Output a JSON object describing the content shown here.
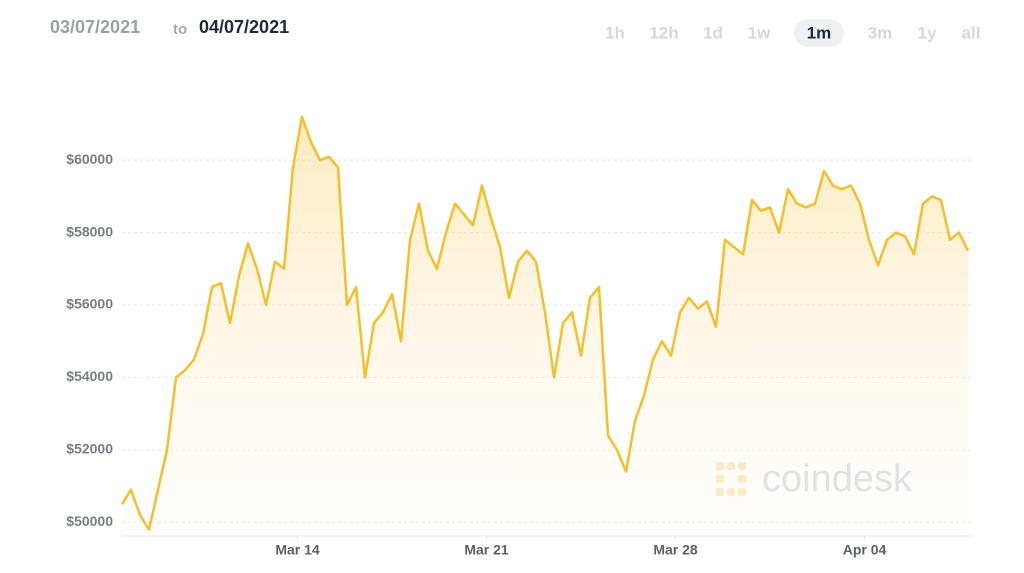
{
  "header": {
    "start_date": "03/07/2021",
    "to": "to",
    "end_date": "04/07/2021",
    "ranges": [
      "1h",
      "12h",
      "1d",
      "1w",
      "1m",
      "3m",
      "1y",
      "all"
    ],
    "active_range": "1m"
  },
  "watermark": "coindesk",
  "chart_data": {
    "type": "line",
    "color": "#f5bf2a",
    "grid": true,
    "x": [
      "03/07/2021 12:00",
      "03/07/2021 20:00",
      "03/08/2021 04:00",
      "03/08/2021 12:00",
      "03/08/2021 20:00",
      "03/09/2021 04:00",
      "03/09/2021 12:00",
      "03/09/2021 20:00",
      "03/10/2021 04:00",
      "03/10/2021 12:00",
      "03/10/2021 20:00",
      "03/11/2021 04:00",
      "03/11/2021 12:00",
      "03/11/2021 20:00",
      "03/12/2021 04:00",
      "03/12/2021 12:00",
      "03/12/2021 20:00",
      "03/13/2021 04:00",
      "03/13/2021 12:00",
      "03/13/2021 20:00",
      "03/14/2021 04:00",
      "03/14/2021 12:00",
      "03/14/2021 20:00",
      "03/15/2021 04:00",
      "03/15/2021 12:00",
      "03/15/2021 20:00",
      "03/16/2021 04:00",
      "03/16/2021 12:00",
      "03/16/2021 20:00",
      "03/17/2021 04:00",
      "03/17/2021 12:00",
      "03/17/2021 20:00",
      "03/18/2021 04:00",
      "03/18/2021 12:00",
      "03/18/2021 20:00",
      "03/19/2021 04:00",
      "03/19/2021 12:00",
      "03/19/2021 20:00",
      "03/20/2021 04:00",
      "03/20/2021 12:00",
      "03/20/2021 20:00",
      "03/21/2021 04:00",
      "03/21/2021 12:00",
      "03/21/2021 20:00",
      "03/22/2021 04:00",
      "03/22/2021 12:00",
      "03/22/2021 20:00",
      "03/23/2021 04:00",
      "03/23/2021 12:00",
      "03/23/2021 20:00",
      "03/24/2021 04:00",
      "03/24/2021 12:00",
      "03/24/2021 20:00",
      "03/25/2021 04:00",
      "03/25/2021 12:00",
      "03/25/2021 20:00",
      "03/26/2021 04:00",
      "03/26/2021 12:00",
      "03/26/2021 20:00",
      "03/27/2021 04:00",
      "03/27/2021 12:00",
      "03/27/2021 20:00",
      "03/28/2021 04:00",
      "03/28/2021 12:00",
      "03/28/2021 20:00",
      "03/29/2021 04:00",
      "03/29/2021 12:00",
      "03/29/2021 20:00",
      "03/30/2021 04:00",
      "03/30/2021 12:00",
      "03/30/2021 20:00",
      "03/31/2021 04:00",
      "03/31/2021 12:00",
      "03/31/2021 20:00",
      "04/01/2021 04:00",
      "04/01/2021 12:00",
      "04/01/2021 20:00",
      "04/02/2021 04:00",
      "04/02/2021 12:00",
      "04/02/2021 20:00",
      "04/03/2021 04:00",
      "04/03/2021 12:00",
      "04/03/2021 20:00",
      "04/04/2021 04:00",
      "04/04/2021 12:00",
      "04/04/2021 20:00",
      "04/05/2021 04:00",
      "04/05/2021 12:00",
      "04/05/2021 20:00",
      "04/06/2021 04:00",
      "04/06/2021 12:00",
      "04/06/2021 20:00",
      "04/07/2021 04:00",
      "04/07/2021 12:00",
      "04/07/2021 20:00"
    ],
    "values": [
      50500,
      50900,
      50200,
      49800,
      50900,
      52000,
      54000,
      54200,
      54500,
      55200,
      56500,
      56600,
      55500,
      56800,
      57700,
      57000,
      56000,
      57200,
      57000,
      59800,
      61200,
      60500,
      60000,
      60100,
      59800,
      56000,
      56500,
      54000,
      55500,
      55800,
      56300,
      55000,
      57800,
      58800,
      57500,
      57000,
      58000,
      58800,
      58500,
      58200,
      59300,
      58400,
      57600,
      56200,
      57200,
      57500,
      57200,
      55800,
      54000,
      55500,
      55800,
      54600,
      56200,
      56500,
      52400,
      52000,
      51400,
      52800,
      53500,
      54500,
      55000,
      54600,
      55800,
      56200,
      55900,
      56100,
      55400,
      57800,
      57600,
      57400,
      58900,
      58600,
      58700,
      58000,
      59200,
      58800,
      58700,
      58800,
      59700,
      59300,
      59200,
      59300,
      58800,
      57800,
      57100,
      57800,
      58000,
      57900,
      57400,
      58800,
      59000,
      58900,
      57800,
      58000,
      57500
    ],
    "xlim": [
      "03/07/2021 12:00",
      "04/07/2021 20:00"
    ],
    "xticks": [
      {
        "value": "03/14/2021 00:00",
        "label": "Mar 14"
      },
      {
        "value": "03/21/2021 00:00",
        "label": "Mar 21"
      },
      {
        "value": "03/28/2021 00:00",
        "label": "Mar 28"
      },
      {
        "value": "04/04/2021 00:00",
        "label": "Apr 04"
      }
    ],
    "ylim": [
      49650,
      61800
    ],
    "yticks": [
      {
        "value": 50000,
        "label": "$50000"
      },
      {
        "value": 52000,
        "label": "$52000"
      },
      {
        "value": 54000,
        "label": "$54000"
      },
      {
        "value": 56000,
        "label": "$56000"
      },
      {
        "value": 58000,
        "label": "$58000"
      },
      {
        "value": 60000,
        "label": "$60000"
      }
    ]
  }
}
